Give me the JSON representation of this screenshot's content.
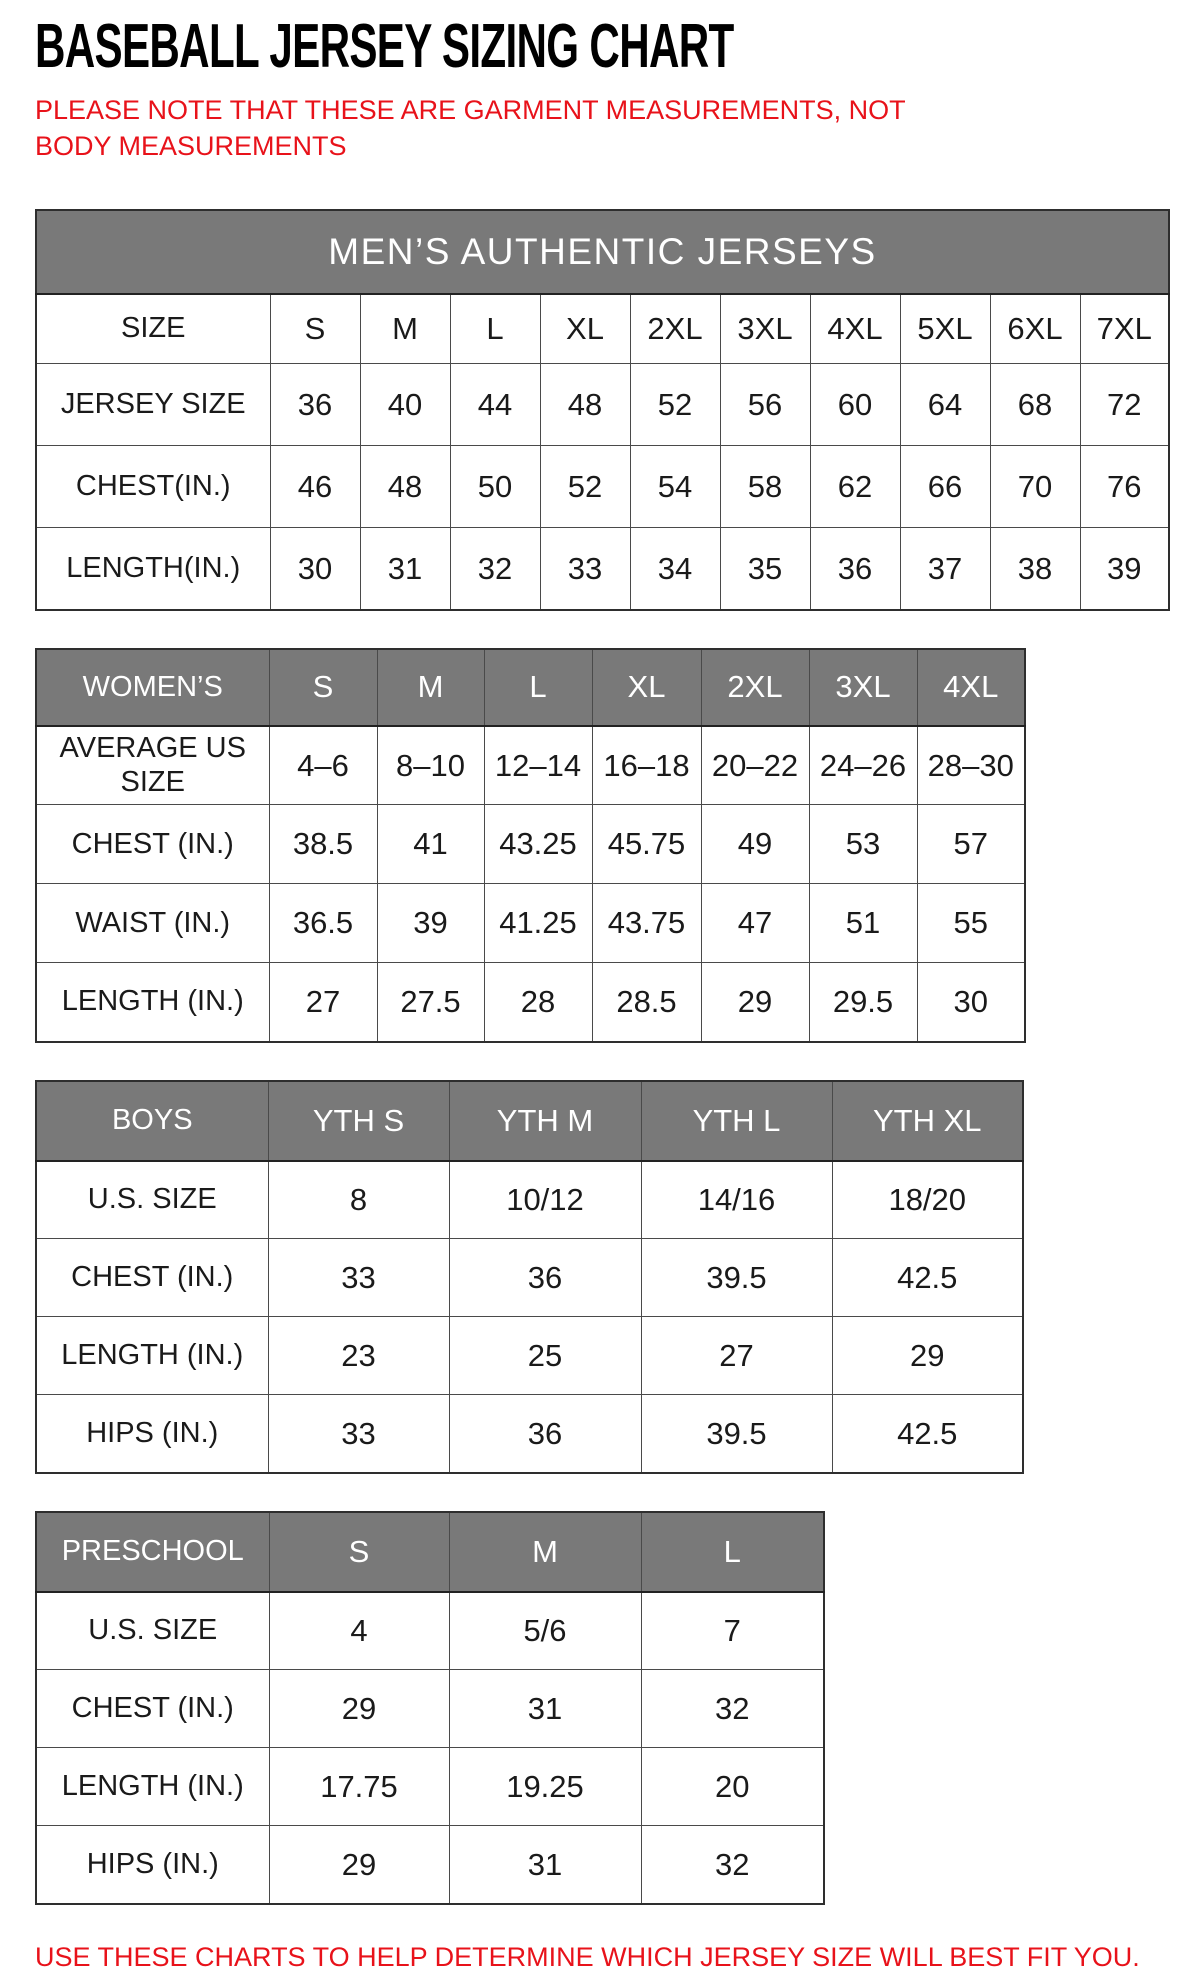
{
  "page": {
    "title": "BASEBALL JERSEY SIZING CHART",
    "note": "PLEASE NOTE THAT THESE ARE GARMENT MEASUREMENTS, NOT BODY MEASUREMENTS",
    "footer": "USE THESE CHARTS TO HELP DETERMINE WHICH JERSEY SIZE WILL BEST FIT YOU.",
    "colors": {
      "accent_red": "#e8121a",
      "header_gray": "#797979",
      "header_text": "#ffffff"
    }
  },
  "tables": {
    "mens": {
      "banner": "MEN’S AUTHENTIC JERSEYS",
      "header": {
        "label": "SIZE",
        "values": [
          "S",
          "M",
          "L",
          "XL",
          "2XL",
          "3XL",
          "4XL",
          "5XL",
          "6XL",
          "7XL"
        ]
      },
      "rows": [
        {
          "label": "JERSEY SIZE",
          "values": [
            "36",
            "40",
            "44",
            "48",
            "52",
            "56",
            "60",
            "64",
            "68",
            "72"
          ]
        },
        {
          "label": "CHEST(IN.)",
          "values": [
            "46",
            "48",
            "50",
            "52",
            "54",
            "58",
            "62",
            "66",
            "70",
            "76"
          ]
        },
        {
          "label": "LENGTH(IN.)",
          "values": [
            "30",
            "31",
            "32",
            "33",
            "34",
            "35",
            "36",
            "37",
            "38",
            "39"
          ]
        }
      ]
    },
    "womens": {
      "header": {
        "label": "WOMEN’S",
        "values": [
          "S",
          "M",
          "L",
          "XL",
          "2XL",
          "3XL",
          "4XL"
        ]
      },
      "rows": [
        {
          "label": "AVERAGE US SIZE",
          "values": [
            "4–6",
            "8–10",
            "12–14",
            "16–18",
            "20–22",
            "24–26",
            "28–30"
          ]
        },
        {
          "label": "CHEST (IN.)",
          "values": [
            "38.5",
            "41",
            "43.25",
            "45.75",
            "49",
            "53",
            "57"
          ]
        },
        {
          "label": "WAIST (IN.)",
          "values": [
            "36.5",
            "39",
            "41.25",
            "43.75",
            "47",
            "51",
            "55"
          ]
        },
        {
          "label": "LENGTH (IN.)",
          "values": [
            "27",
            "27.5",
            "28",
            "28.5",
            "29",
            "29.5",
            "30"
          ]
        }
      ]
    },
    "boys": {
      "header": {
        "label": "BOYS",
        "values": [
          "YTH S",
          "YTH M",
          "YTH L",
          "YTH XL"
        ]
      },
      "rows": [
        {
          "label": "U.S. SIZE",
          "values": [
            "8",
            "10/12",
            "14/16",
            "18/20"
          ]
        },
        {
          "label": "CHEST (IN.)",
          "values": [
            "33",
            "36",
            "39.5",
            "42.5"
          ]
        },
        {
          "label": "LENGTH (IN.)",
          "values": [
            "23",
            "25",
            "27",
            "29"
          ]
        },
        {
          "label": "HIPS (IN.)",
          "values": [
            "33",
            "36",
            "39.5",
            "42.5"
          ]
        }
      ]
    },
    "preschool": {
      "header": {
        "label": "PRESCHOOL",
        "values": [
          "S",
          "M",
          "L"
        ]
      },
      "rows": [
        {
          "label": "U.S. SIZE",
          "values": [
            "4",
            "5/6",
            "7"
          ]
        },
        {
          "label": "CHEST (IN.)",
          "values": [
            "29",
            "31",
            "32"
          ]
        },
        {
          "label": "LENGTH (IN.)",
          "values": [
            "17.75",
            "19.25",
            "20"
          ]
        },
        {
          "label": "HIPS (IN.)",
          "values": [
            "29",
            "31",
            "32"
          ]
        }
      ]
    }
  }
}
